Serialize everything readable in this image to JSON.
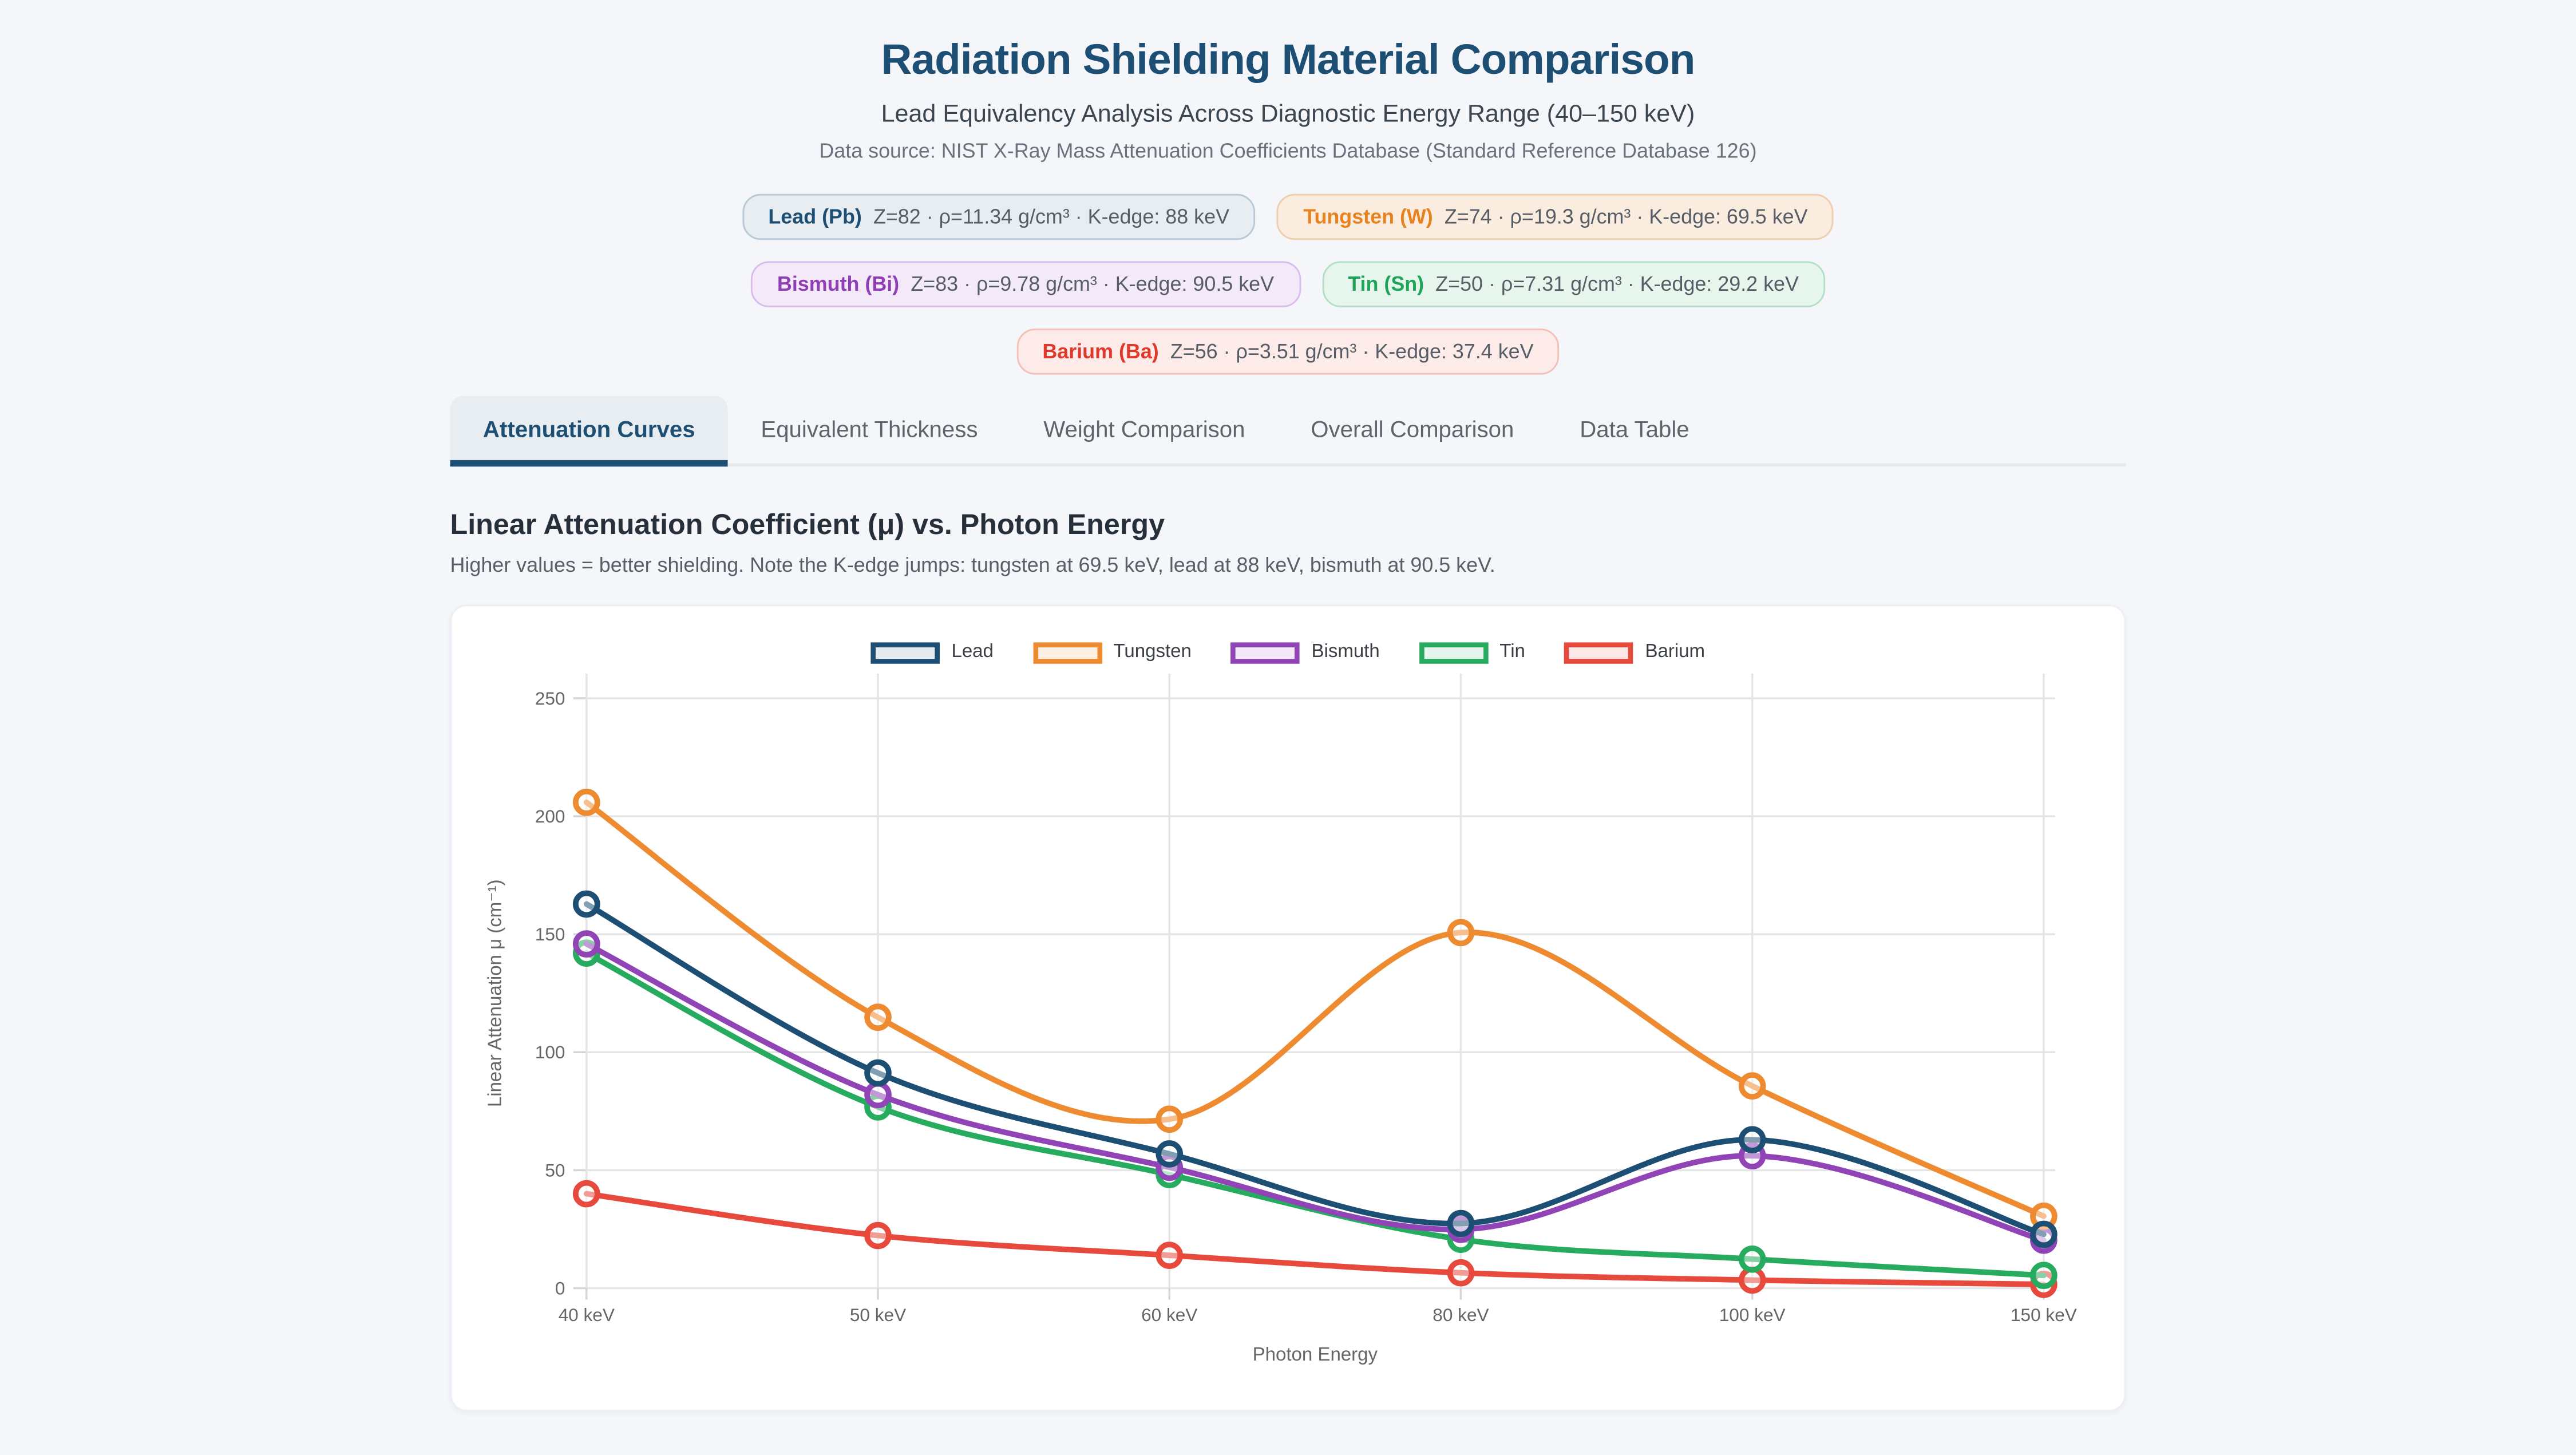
{
  "header": {
    "title": "Radiation Shielding Material Comparison",
    "subtitle": "Lead Equivalency Analysis Across Diagnostic Energy Range (40–150 keV)",
    "data_source": "Data source: NIST X-Ray Mass Attenuation Coefficients Database (Standard Reference Database 126)"
  },
  "materials": [
    {
      "id": "lead",
      "name": "Lead (Pb)",
      "details": "Z=82 · ρ=11.34 g/cm³ · K-edge: 88 keV",
      "color": "#1d4f74",
      "chip_bg": "#e8edf2",
      "chip_border": "#b7c8d6",
      "row": 0
    },
    {
      "id": "tungsten",
      "name": "Tungsten (W)",
      "details": "Z=74 · ρ=19.3 g/cm³ · K-edge: 69.5 keV",
      "color": "#e8821e",
      "chip_bg": "#faecdf",
      "chip_border": "#f0cdae",
      "row": 0
    },
    {
      "id": "bismuth",
      "name": "Bismuth (Bi)",
      "details": "Z=83 · ρ=9.78 g/cm³ · K-edge: 90.5 keV",
      "color": "#8e3fb3",
      "chip_bg": "#f3e9f9",
      "chip_border": "#d9bcec",
      "row": 1
    },
    {
      "id": "tin",
      "name": "Tin (Sn)",
      "details": "Z=50 · ρ=7.31 g/cm³ · K-edge: 29.2 keV",
      "color": "#1fa55a",
      "chip_bg": "#e6f6ec",
      "chip_border": "#b2e0c5",
      "row": 1
    },
    {
      "id": "barium",
      "name": "Barium (Ba)",
      "details": "Z=56 · ρ=3.51 g/cm³ · K-edge: 37.4 keV",
      "color": "#e0392b",
      "chip_bg": "#fcebe8",
      "chip_border": "#f3bfb6",
      "row": 2
    }
  ],
  "tabs": [
    {
      "label": "Attenuation Curves",
      "active": true
    },
    {
      "label": "Equivalent Thickness",
      "active": false
    },
    {
      "label": "Weight Comparison",
      "active": false
    },
    {
      "label": "Overall Comparison",
      "active": false
    },
    {
      "label": "Data Table",
      "active": false
    }
  ],
  "section": {
    "title": "Linear Attenuation Coefficient (μ) vs. Photon Energy",
    "subtitle": "Higher values = better shielding. Note the K-edge jumps: tungsten at 69.5 keV, lead at 88 keV, bismuth at 90.5 keV."
  },
  "chart_data": {
    "type": "line",
    "categories": [
      "40 keV",
      "50 keV",
      "60 keV",
      "80 keV",
      "100 keV",
      "150 keV"
    ],
    "xlabel": "Photon Energy",
    "ylabel": "Linear Attenuation μ (cm⁻¹)",
    "ylim": [
      0,
      250
    ],
    "yticks": [
      0,
      50,
      100,
      150,
      200,
      250
    ],
    "grid": true,
    "legend_position": "top",
    "curve": "smooth",
    "series": [
      {
        "name": "Lead",
        "color": "#1d4f74",
        "values": [
          162.8,
          91.2,
          56.9,
          27.4,
          62.9,
          22.8
        ]
      },
      {
        "name": "Tungsten",
        "color": "#ee8b30",
        "values": [
          205.9,
          114.8,
          71.6,
          150.7,
          85.7,
          30.5
        ]
      },
      {
        "name": "Bismuth",
        "color": "#9044b5",
        "values": [
          145.9,
          82.0,
          51.2,
          24.9,
          56.1,
          20.3
        ]
      },
      {
        "name": "Tin",
        "color": "#27ab5f",
        "values": [
          142.0,
          76.8,
          48.1,
          20.7,
          12.3,
          5.4
        ]
      },
      {
        "name": "Barium",
        "color": "#e74a3c",
        "values": [
          40.0,
          22.3,
          13.9,
          6.5,
          3.4,
          1.6
        ]
      }
    ],
    "colors": {
      "gridline": "#e5e5e5",
      "tick": "#d2d5d9",
      "tick_text": "#666666",
      "axis_title": "#666666"
    }
  }
}
